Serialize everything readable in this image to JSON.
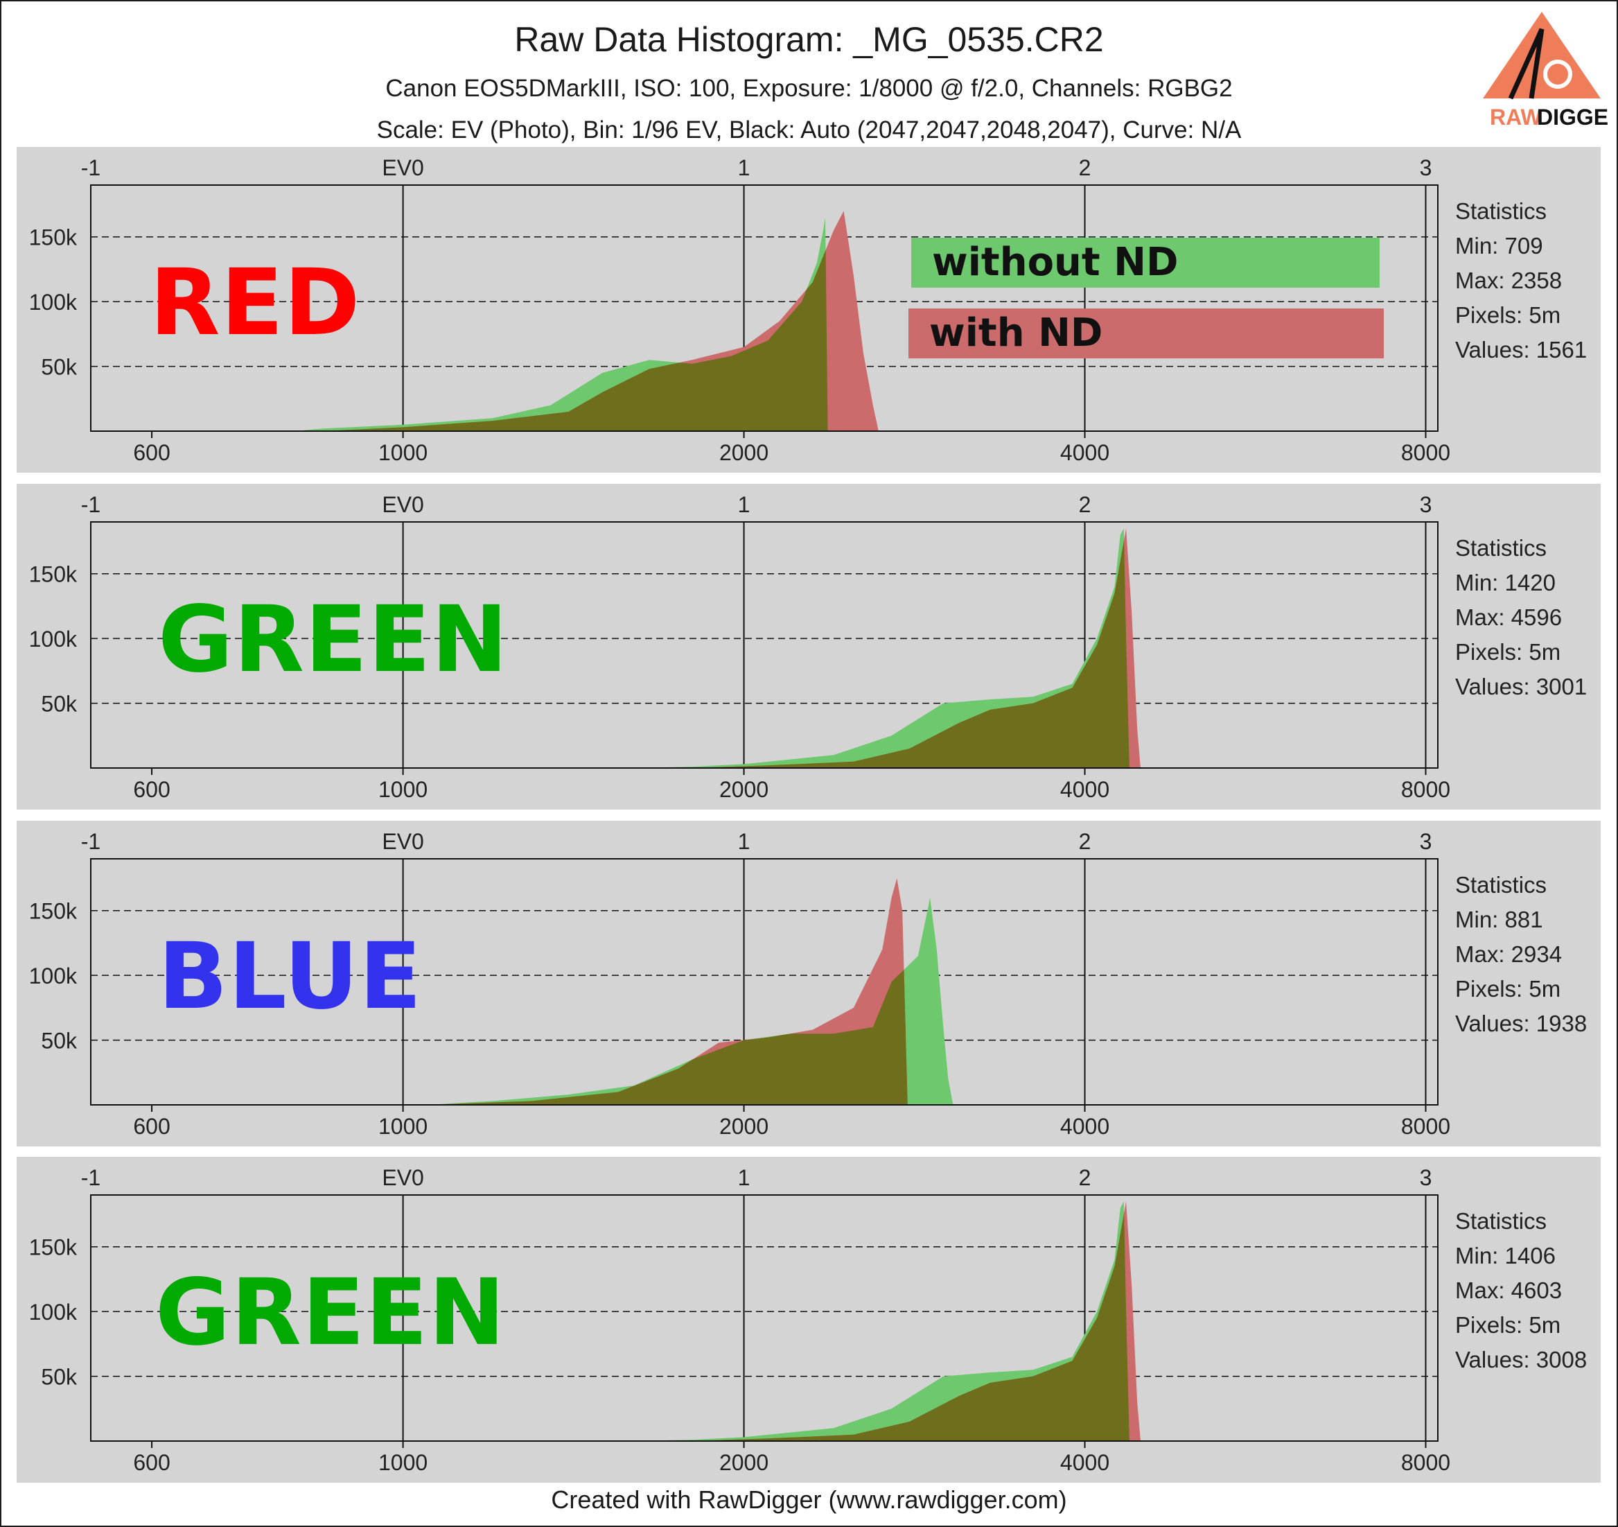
{
  "title": "Raw Data Histogram: _MG_0535.CR2",
  "subtitle1": "Canon EOS5DMarkIII, ISO: 100, Exposure: 1/8000 @ f/2.0, Channels: RGBG2",
  "subtitle2": "Scale: EV (Photo), Bin: 1/96 EV, Black: Auto (2047,2047,2048,2047), Curve: N/A",
  "footer": "Created with RawDigger (www.rawdigger.com)",
  "logo": {
    "icon": "rawdigger-logo-icon",
    "text_a": "RAW",
    "text_b": "DIGGER",
    "color": "#f07d5a"
  },
  "legend": {
    "without_label": "without ND",
    "without_color": "#6ec86e",
    "with_label": "with ND",
    "with_color": "#cc6b6b"
  },
  "colors": {
    "overlap": "#6e6e1c",
    "panel_bg": "#d4d4d4",
    "grid": "#111111"
  },
  "panels": [
    {
      "label": "RED",
      "label_color": "#ff0000",
      "stats": {
        "heading": "Statistics",
        "min": "Min: 709",
        "max": "Max: 2358",
        "pixels": "Pixels: 5m",
        "values": "Values: 1561"
      }
    },
    {
      "label": "GREEN",
      "label_color": "#00aa00",
      "stats": {
        "heading": "Statistics",
        "min": "Min: 1420",
        "max": "Max: 4596",
        "pixels": "Pixels: 5m",
        "values": "Values: 3001"
      }
    },
    {
      "label": "BLUE",
      "label_color": "#3333ee",
      "stats": {
        "heading": "Statistics",
        "min": "Min: 881",
        "max": "Max: 2934",
        "pixels": "Pixels: 5m",
        "values": "Values: 1938"
      }
    },
    {
      "label": "GREEN",
      "label_color": "#00aa00",
      "stats": {
        "heading": "Statistics",
        "min": "Min: 1406",
        "max": "Max: 4603",
        "pixels": "Pixels: 5m",
        "values": "Values: 3008"
      }
    }
  ],
  "chart_data": {
    "type": "area",
    "x_scale": "log2",
    "xlim": [
      530,
      8200
    ],
    "ylim": [
      0,
      190000
    ],
    "bottom_ticks": [
      "600",
      "1000",
      "2000",
      "4000",
      "8000"
    ],
    "bottom_tick_values": [
      600,
      1000,
      2000,
      4000,
      8000
    ],
    "top_ticks": [
      "-1",
      "EV0",
      "1",
      "2",
      "3"
    ],
    "top_tick_values": [
      512,
      1000,
      2000,
      4000,
      8000
    ],
    "y_ticks": [
      "50k",
      "100k",
      "150k"
    ],
    "y_tick_values": [
      50000,
      100000,
      150000
    ],
    "grid": "dashed-horizontal",
    "series_names": [
      "without ND",
      "with ND"
    ],
    "panels": [
      {
        "series": [
          {
            "name": "without ND",
            "points": [
              [
                800,
                0
              ],
              [
                850,
                2000
              ],
              [
                1000,
                5000
              ],
              [
                1200,
                10000
              ],
              [
                1350,
                20000
              ],
              [
                1500,
                45000
              ],
              [
                1650,
                55000
              ],
              [
                1800,
                52000
              ],
              [
                1950,
                58000
              ],
              [
                2100,
                70000
              ],
              [
                2250,
                100000
              ],
              [
                2320,
                130000
              ],
              [
                2350,
                155000
              ],
              [
                2360,
                165000
              ],
              [
                2372,
                0
              ]
            ]
          },
          {
            "name": "with ND",
            "points": [
              [
                850,
                0
              ],
              [
                1000,
                3000
              ],
              [
                1200,
                8000
              ],
              [
                1400,
                15000
              ],
              [
                1500,
                30000
              ],
              [
                1650,
                48000
              ],
              [
                1800,
                55000
              ],
              [
                2000,
                65000
              ],
              [
                2150,
                85000
              ],
              [
                2300,
                115000
              ],
              [
                2400,
                155000
              ],
              [
                2450,
                170000
              ],
              [
                2500,
                120000
              ],
              [
                2550,
                60000
              ],
              [
                2600,
                20000
              ],
              [
                2630,
                0
              ]
            ]
          }
        ]
      },
      {
        "series": [
          {
            "name": "without ND",
            "points": [
              [
                1600,
                0
              ],
              [
                1800,
                1000
              ],
              [
                2000,
                3000
              ],
              [
                2400,
                10000
              ],
              [
                2700,
                25000
              ],
              [
                3000,
                50000
              ],
              [
                3300,
                53000
              ],
              [
                3600,
                55000
              ],
              [
                3900,
                65000
              ],
              [
                4100,
                100000
              ],
              [
                4250,
                140000
              ],
              [
                4300,
                180000
              ],
              [
                4330,
                185000
              ],
              [
                4350,
                100000
              ],
              [
                4380,
                0
              ]
            ]
          },
          {
            "name": "with ND",
            "points": [
              [
                1800,
                0
              ],
              [
                2100,
                2000
              ],
              [
                2500,
                5000
              ],
              [
                2800,
                15000
              ],
              [
                3100,
                35000
              ],
              [
                3300,
                45000
              ],
              [
                3600,
                50000
              ],
              [
                3900,
                62000
              ],
              [
                4100,
                95000
              ],
              [
                4250,
                135000
              ],
              [
                4350,
                185000
              ],
              [
                4400,
                120000
              ],
              [
                4450,
                30000
              ],
              [
                4480,
                0
              ]
            ]
          }
        ]
      },
      {
        "series": [
          {
            "name": "without ND",
            "points": [
              [
                1050,
                0
              ],
              [
                1200,
                3000
              ],
              [
                1400,
                8000
              ],
              [
                1600,
                15000
              ],
              [
                1800,
                35000
              ],
              [
                2000,
                50000
              ],
              [
                2200,
                55000
              ],
              [
                2400,
                55000
              ],
              [
                2600,
                60000
              ],
              [
                2700,
                95000
              ],
              [
                2850,
                115000
              ],
              [
                2920,
                160000
              ],
              [
                2960,
                120000
              ],
              [
                3000,
                60000
              ],
              [
                3030,
                20000
              ],
              [
                3060,
                0
              ]
            ]
          },
          {
            "name": "with ND",
            "points": [
              [
                1050,
                0
              ],
              [
                1300,
                3000
              ],
              [
                1550,
                10000
              ],
              [
                1750,
                28000
              ],
              [
                1900,
                48000
              ],
              [
                2100,
                52000
              ],
              [
                2300,
                58000
              ],
              [
                2500,
                75000
              ],
              [
                2650,
                120000
              ],
              [
                2700,
                160000
              ],
              [
                2730,
                175000
              ],
              [
                2760,
                150000
              ],
              [
                2790,
                0
              ]
            ]
          }
        ]
      },
      {
        "series": [
          {
            "name": "without ND",
            "points": [
              [
                1600,
                0
              ],
              [
                1800,
                1000
              ],
              [
                2000,
                3000
              ],
              [
                2400,
                10000
              ],
              [
                2700,
                25000
              ],
              [
                3000,
                50000
              ],
              [
                3300,
                53000
              ],
              [
                3600,
                55000
              ],
              [
                3900,
                65000
              ],
              [
                4100,
                100000
              ],
              [
                4250,
                140000
              ],
              [
                4300,
                180000
              ],
              [
                4330,
                185000
              ],
              [
                4350,
                100000
              ],
              [
                4380,
                0
              ]
            ]
          },
          {
            "name": "with ND",
            "points": [
              [
                1800,
                0
              ],
              [
                2100,
                2000
              ],
              [
                2500,
                5000
              ],
              [
                2800,
                15000
              ],
              [
                3100,
                35000
              ],
              [
                3300,
                45000
              ],
              [
                3600,
                50000
              ],
              [
                3900,
                62000
              ],
              [
                4100,
                95000
              ],
              [
                4250,
                135000
              ],
              [
                4350,
                185000
              ],
              [
                4400,
                120000
              ],
              [
                4450,
                30000
              ],
              [
                4480,
                0
              ]
            ]
          }
        ]
      }
    ]
  }
}
